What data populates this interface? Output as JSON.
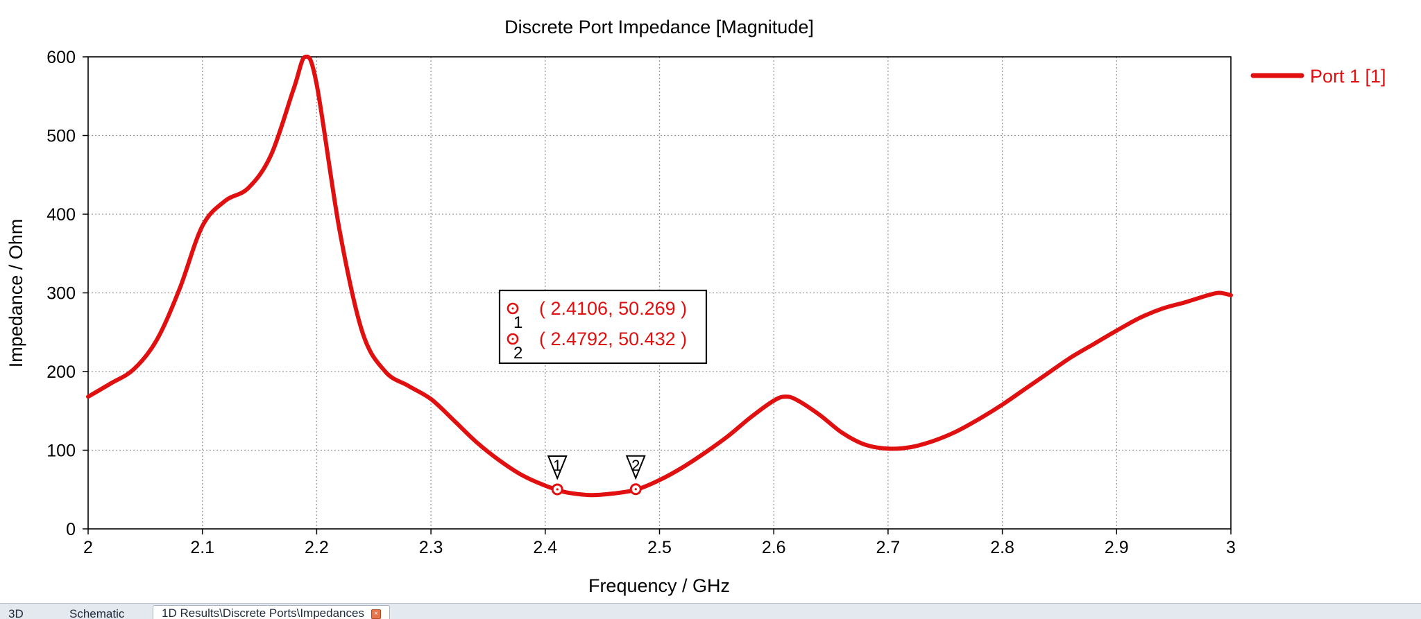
{
  "chart_data": {
    "type": "line",
    "title": "Discrete Port Impedance [Magnitude]",
    "xlabel": "Frequency / GHz",
    "ylabel": "Impedance / Ohm",
    "xlim": [
      2,
      3
    ],
    "ylim": [
      0,
      600
    ],
    "xticks": [
      2,
      2.1,
      2.2,
      2.3,
      2.4,
      2.5,
      2.6,
      2.7,
      2.8,
      2.9,
      3
    ],
    "xtick_labels": [
      "2",
      "2.1",
      "2.2",
      "2.3",
      "2.4",
      "2.5",
      "2.6",
      "2.7",
      "2.8",
      "2.9",
      "3"
    ],
    "yticks": [
      0,
      100,
      200,
      300,
      400,
      500,
      600
    ],
    "ytick_labels": [
      "0",
      "100",
      "200",
      "300",
      "400",
      "500",
      "600"
    ],
    "grid": true,
    "legend_position": "right",
    "series": [
      {
        "name": "Port 1 [1]",
        "color": "#e01010",
        "x": [
          2.0,
          2.02,
          2.04,
          2.06,
          2.08,
          2.1,
          2.12,
          2.14,
          2.16,
          2.18,
          2.19,
          2.2,
          2.22,
          2.24,
          2.26,
          2.28,
          2.3,
          2.32,
          2.34,
          2.36,
          2.38,
          2.4,
          2.41,
          2.42,
          2.44,
          2.46,
          2.48,
          2.5,
          2.52,
          2.54,
          2.56,
          2.58,
          2.6,
          2.61,
          2.62,
          2.64,
          2.66,
          2.68,
          2.7,
          2.72,
          2.74,
          2.76,
          2.78,
          2.8,
          2.82,
          2.84,
          2.86,
          2.88,
          2.9,
          2.92,
          2.94,
          2.96,
          2.98,
          2.99,
          3.0
        ],
        "y": [
          168,
          185,
          203,
          240,
          305,
          385,
          417,
          433,
          475,
          560,
          600,
          565,
          380,
          250,
          200,
          182,
          165,
          138,
          110,
          87,
          68,
          55,
          50,
          46,
          43,
          45,
          50,
          62,
          78,
          97,
          118,
          142,
          163,
          168,
          164,
          145,
          122,
          107,
          102,
          104,
          112,
          124,
          140,
          158,
          178,
          198,
          218,
          235,
          252,
          268,
          280,
          288,
          297,
          300,
          297
        ]
      }
    ],
    "markers": [
      {
        "id": "1",
        "x": 2.4106,
        "y": 50.269,
        "label": "( 2.4106, 50.269 )"
      },
      {
        "id": "2",
        "x": 2.4792,
        "y": 50.432,
        "label": "( 2.4792, 50.432 )"
      }
    ]
  },
  "tabs": [
    {
      "label": "3D"
    },
    {
      "label": "Schematic"
    },
    {
      "label": "1D Results\\Discrete Ports\\Impedances"
    }
  ]
}
